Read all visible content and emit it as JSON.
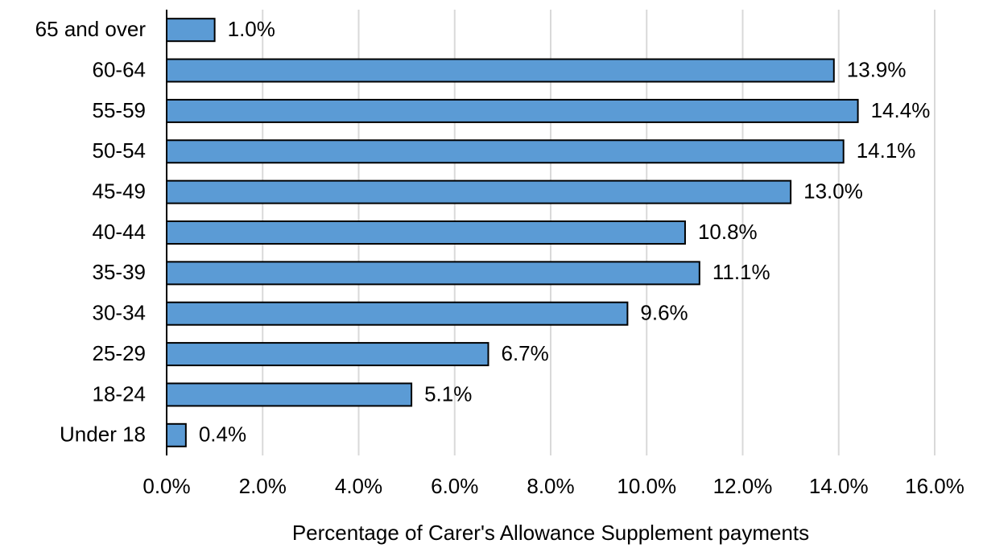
{
  "chart_data": {
    "type": "bar",
    "orientation": "horizontal",
    "x_label": "Percentage of Carer's Allowance Supplement payments",
    "categories": [
      "65 and over",
      "60-64",
      "55-59",
      "50-54",
      "45-49",
      "40-44",
      "35-39",
      "30-34",
      "25-29",
      "18-24",
      "Under 18"
    ],
    "values": [
      1.0,
      13.9,
      14.4,
      14.1,
      13.0,
      10.8,
      11.1,
      9.6,
      6.7,
      5.1,
      0.4
    ],
    "value_labels": [
      "1.0%",
      "13.9%",
      "14.4%",
      "14.1%",
      "13.0%",
      "10.8%",
      "11.1%",
      "9.6%",
      "6.7%",
      "5.1%",
      "0.4%"
    ],
    "color": "#5b9bd5",
    "xlim": [
      0,
      16
    ],
    "xticks": [
      {
        "value": 0,
        "label": "0.0%"
      },
      {
        "value": 2,
        "label": "2.0%"
      },
      {
        "value": 4,
        "label": "4.0%"
      },
      {
        "value": 6,
        "label": "6.0%"
      },
      {
        "value": 8,
        "label": "8.0%"
      },
      {
        "value": 10,
        "label": "10.0%"
      },
      {
        "value": 12,
        "label": "12.0%"
      },
      {
        "value": 14,
        "label": "14.0%"
      },
      {
        "value": 16,
        "label": "16.0%"
      }
    ],
    "grid": true
  }
}
